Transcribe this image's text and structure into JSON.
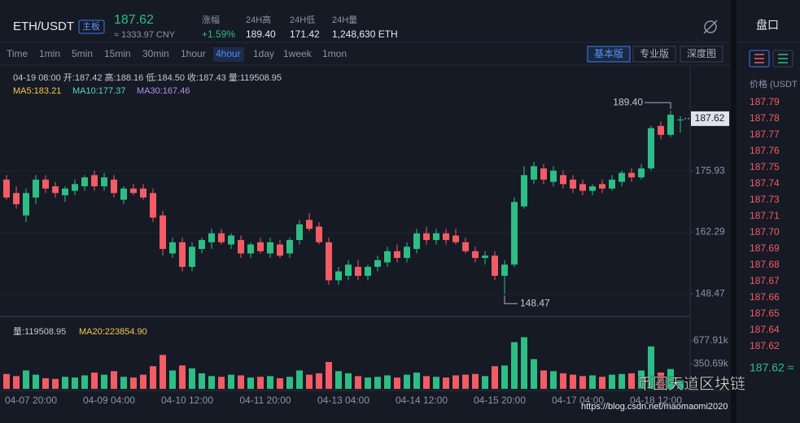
{
  "header": {
    "pair": "ETH/USDT",
    "badge": "主板",
    "price": "187.62",
    "cny": "≈ 1333.97 CNY",
    "stats": [
      {
        "label": "涨幅",
        "value": "+1.59%"
      },
      {
        "label": "24H高",
        "value": "189.40"
      },
      {
        "label": "24H低",
        "value": "171.42"
      },
      {
        "label": "24H量",
        "value": "1,248,630 ETH"
      }
    ]
  },
  "intervals": [
    "Time",
    "1min",
    "5min",
    "15min",
    "30min",
    "1hour",
    "4hour",
    "1day",
    "1week",
    "1mon"
  ],
  "views": [
    "基本版",
    "专业版",
    "深度图"
  ],
  "chart": {
    "type": "candlestick",
    "info": "04-19 08:00  开:187.42  高:188.16  低:184.50  收:187.43  量:119508.95",
    "ma_labels": [
      {
        "text": "MA5:183.21",
        "color": "#f2c94c"
      },
      {
        "text": "MA10:177.37",
        "color": "#58d3c4"
      },
      {
        "text": "MA30:167.46",
        "color": "#b48ee8"
      }
    ],
    "up_color": "#2dbd85",
    "down_color": "#f25c64",
    "categories": [
      null,
      null,
      null,
      "04-07 20:00",
      null,
      null,
      null,
      null,
      null,
      null,
      null,
      "04-09 04:00",
      null,
      null,
      null,
      null,
      null,
      null,
      null,
      "04-10 12:00",
      null,
      null,
      null,
      null,
      null,
      null,
      null,
      "04-11 20:00",
      null,
      null,
      null,
      null,
      null,
      null,
      null,
      "04-13 04:00",
      null,
      null,
      null,
      null,
      null,
      null,
      null,
      "04-14 12:00",
      null,
      null,
      null,
      null,
      null,
      null,
      null,
      "04-15 20:00",
      null,
      null,
      null,
      null,
      null,
      null,
      null,
      "04-17 04:00",
      null,
      null,
      null,
      null,
      null,
      null,
      null,
      "04-18 12:00",
      null,
      null
    ],
    "open": [
      174,
      171,
      166,
      170,
      174,
      172.5,
      170.5,
      171.5,
      172.5,
      175,
      172.5,
      174,
      169.5,
      172,
      172,
      171,
      166,
      157.5,
      160,
      154.5,
      158.5,
      160,
      162,
      159.5,
      160.5,
      157.5,
      160,
      157.5,
      159.5,
      157.5,
      160.5,
      165,
      163.5,
      160,
      151.5,
      152.5,
      154.5,
      152.5,
      154.5,
      155.5,
      158,
      156.5,
      158.5,
      162,
      160.5,
      162,
      161.5,
      160,
      158,
      156.5,
      157,
      152.5,
      155,
      168,
      174,
      176.5,
      173.5,
      175,
      174,
      173,
      171.5,
      173,
      172,
      173.5,
      175.5,
      174.5,
      176.5,
      186,
      184,
      187.42
    ],
    "high": [
      175,
      172.5,
      172,
      175,
      175,
      173.5,
      172.5,
      174,
      175,
      176,
      175.5,
      175,
      172.5,
      173,
      173,
      172,
      167,
      161,
      161,
      160,
      161,
      163,
      163,
      162,
      161.5,
      160,
      161,
      161,
      160.5,
      161,
      165,
      166.5,
      164.5,
      161,
      154.5,
      156,
      156,
      155,
      157,
      159,
      159.5,
      160,
      163,
      163.5,
      163,
      163,
      163,
      161,
      159,
      158,
      158,
      156,
      170,
      177,
      178,
      177.5,
      177,
      176,
      175,
      174,
      173,
      174,
      175,
      176,
      176.5,
      177.5,
      186,
      187,
      189.4,
      188.16
    ],
    "low": [
      169.5,
      167.5,
      164.5,
      168.5,
      171,
      170,
      169,
      170.5,
      171.5,
      171.5,
      171.5,
      170,
      168.5,
      170.5,
      169.5,
      164.5,
      157,
      156.5,
      153.5,
      153.5,
      157.5,
      158.5,
      159.5,
      158.5,
      156.5,
      156.5,
      157.5,
      156.5,
      156.5,
      156.5,
      159.5,
      162.5,
      159.5,
      150.5,
      150.5,
      151.5,
      151.5,
      151.5,
      153.5,
      154.5,
      155.5,
      155.5,
      157.5,
      159.5,
      159.5,
      159.5,
      159.5,
      157.5,
      155.5,
      155,
      151.5,
      148.47,
      154.5,
      167.5,
      173,
      173,
      172.5,
      172,
      171,
      170.5,
      170.5,
      171,
      171.5,
      172.5,
      173.5,
      174,
      176,
      183,
      183.5,
      184.5
    ],
    "close": [
      170,
      168.5,
      171,
      174,
      172,
      171,
      172,
      173,
      174.5,
      172.5,
      174.5,
      171,
      172,
      171,
      170,
      165.5,
      158.5,
      160,
      154.5,
      159,
      160.5,
      162,
      160,
      161.5,
      157.5,
      159.5,
      158,
      160,
      157,
      160.5,
      164,
      163,
      160,
      151.5,
      153.5,
      155,
      152.5,
      154.5,
      156,
      158,
      156.5,
      159,
      162,
      160.5,
      162,
      160.5,
      160,
      158,
      156.5,
      157,
      152.5,
      155,
      169,
      175,
      177,
      174,
      176,
      173,
      172,
      171.5,
      172.5,
      172,
      174,
      175.5,
      174.5,
      176.5,
      185.5,
      184,
      188.5,
      187.43
    ],
    "volume": [
      210000,
      180000,
      260000,
      200000,
      150000,
      140000,
      170000,
      160000,
      190000,
      230000,
      200000,
      250000,
      170000,
      160000,
      200000,
      320000,
      480000,
      260000,
      330000,
      290000,
      220000,
      180000,
      170000,
      200000,
      190000,
      160000,
      170000,
      180000,
      150000,
      170000,
      260000,
      200000,
      220000,
      380000,
      250000,
      220000,
      180000,
      160000,
      170000,
      190000,
      160000,
      200000,
      230000,
      180000,
      170000,
      160000,
      190000,
      200000,
      210000,
      180000,
      320000,
      330000,
      660000,
      730000,
      420000,
      260000,
      250000,
      220000,
      200000,
      180000,
      190000,
      170000,
      200000,
      210000,
      220000,
      260000,
      600000,
      230000,
      280000,
      119508.95
    ],
    "ylim": [
      143.6,
      199.6
    ],
    "yticks": [
      175.93,
      162.29,
      148.47
    ],
    "last_price": 187.62,
    "max_marker": {
      "value": 189.4,
      "label": "189.40"
    },
    "min_marker": 148.47,
    "volume_panel": {
      "label": "量:119508.95",
      "ma": "MA20:223854.90",
      "ylim": [
        0,
        920000
      ],
      "yticks": [
        {
          "value": 677910,
          "label": "677.91k"
        },
        {
          "value": 350690,
          "label": "350.69k"
        }
      ]
    }
  },
  "order_book": {
    "title": "盘口",
    "column": "价格 (USDT",
    "prices": [
      "187.79",
      "187.78",
      "187.77",
      "187.76",
      "187.75",
      "187.74",
      "187.73",
      "187.71",
      "187.70",
      "187.69",
      "187.68",
      "187.67",
      "187.66",
      "187.65",
      "187.64",
      "187.62"
    ],
    "last": "187.62 ≈"
  },
  "watermark": {
    "brand": "币圈天道区块链",
    "url": "https://blog.csdn.net/maomaomi2020"
  }
}
